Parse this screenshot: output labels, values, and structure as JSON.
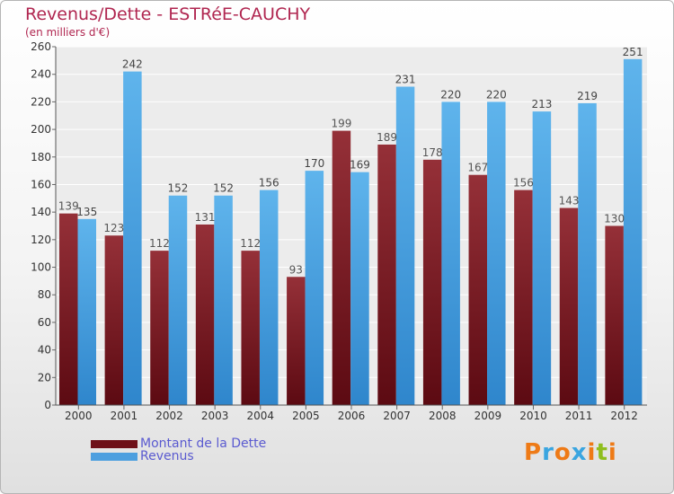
{
  "header": {
    "title": "Revenus/Dette - ESTRéE-CAUCHY",
    "subtitle": "(en milliers d'€)"
  },
  "legend": {
    "debt_label": "Montant de la Dette",
    "revenue_label": "Revenus"
  },
  "logo": {
    "text": "Proxiti",
    "letter_colors": [
      "#ee7a16",
      "#3aa5e0",
      "#ee7a16",
      "#3aa5e0",
      "#ee7a16",
      "#8fbe1e",
      "#ee7a16"
    ]
  },
  "colors": {
    "debt": "#6e1018",
    "debt_light": "#932c36",
    "revenue": "#4d9fdf",
    "revenue_light": "#5cb2ea",
    "title": "#b02650",
    "legend_text": "#5a5ad0"
  },
  "chart_data": {
    "type": "bar",
    "categories": [
      "2000",
      "2001",
      "2002",
      "2003",
      "2004",
      "2005",
      "2006",
      "2007",
      "2008",
      "2009",
      "2010",
      "2011",
      "2012"
    ],
    "series": [
      {
        "name": "Montant de la Dette",
        "values": [
          139,
          123,
          112,
          131,
          112,
          93,
          199,
          189,
          178,
          167,
          156,
          143,
          130
        ]
      },
      {
        "name": "Revenus",
        "values": [
          135,
          242,
          152,
          152,
          156,
          170,
          169,
          231,
          220,
          220,
          213,
          219,
          251
        ]
      }
    ],
    "ylim": [
      0,
      260
    ],
    "yticks": [
      0,
      20,
      40,
      60,
      80,
      100,
      120,
      140,
      160,
      180,
      200,
      220,
      240,
      260
    ],
    "grid": true,
    "legend_position": "bottom-left"
  }
}
